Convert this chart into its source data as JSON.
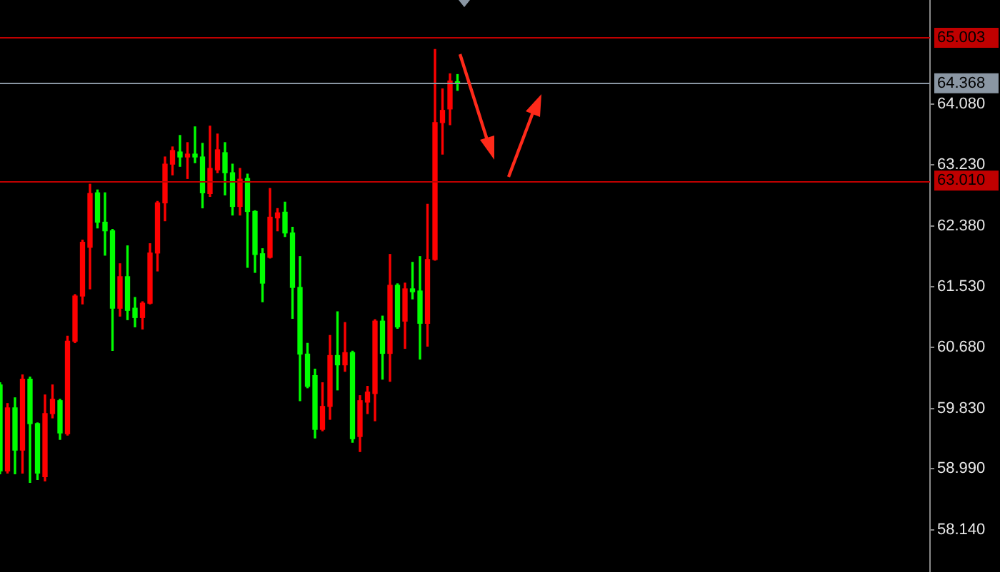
{
  "chart_data": {
    "type": "candlestick",
    "categories": [
      null,
      null,
      null,
      null,
      null,
      null,
      null,
      null,
      null,
      null,
      null,
      null,
      null,
      null,
      null,
      null,
      null,
      null,
      null,
      null,
      null,
      null,
      null,
      null,
      null,
      null,
      null,
      null,
      null,
      null,
      null,
      null,
      null,
      null,
      null,
      null,
      null,
      null,
      null,
      null,
      null,
      null,
      null,
      null,
      null,
      null,
      null,
      null,
      null,
      null,
      null,
      null,
      null,
      null,
      null,
      null,
      null,
      null,
      null,
      null,
      null,
      null,
      null,
      null,
      null,
      null,
      null,
      null,
      null,
      null,
      null,
      null,
      null,
      null,
      null,
      null,
      null,
      null,
      null,
      null,
      null,
      null,
      null,
      null,
      null,
      null,
      null,
      null,
      null,
      null,
      null,
      null,
      null,
      null,
      null,
      null,
      null,
      null,
      null,
      null,
      null,
      null,
      null,
      null,
      null,
      null,
      null,
      null,
      null,
      null,
      null,
      null,
      null,
      null,
      null,
      null,
      null,
      null,
      null,
      null,
      null,
      null,
      null,
      null,
      null
    ],
    "ohlc": [
      [
        60.16,
        60.19,
        58.92,
        58.96
      ],
      [
        58.96,
        59.9,
        58.93,
        59.84
      ],
      [
        59.84,
        59.98,
        58.92,
        59.25
      ],
      [
        59.25,
        60.3,
        58.93,
        60.24
      ],
      [
        60.24,
        60.27,
        58.8,
        59.62
      ],
      [
        59.62,
        59.63,
        58.84,
        58.93
      ],
      [
        58.88,
        60.02,
        58.82,
        59.76
      ],
      [
        59.76,
        60.16,
        59.7,
        59.96
      ],
      [
        59.94,
        59.96,
        59.4,
        59.49
      ],
      [
        59.48,
        60.84,
        59.46,
        60.77
      ],
      [
        60.77,
        61.42,
        60.75,
        61.4
      ],
      [
        61.4,
        62.18,
        61.29,
        62.15
      ],
      [
        62.08,
        62.96,
        61.5,
        62.83
      ],
      [
        62.84,
        62.88,
        62.35,
        62.43
      ],
      [
        62.43,
        62.84,
        61.97,
        62.31
      ],
      [
        62.31,
        62.33,
        60.64,
        61.23
      ],
      [
        61.23,
        61.85,
        61.12,
        61.67
      ],
      [
        61.67,
        62.1,
        61.07,
        61.2
      ],
      [
        61.23,
        61.38,
        60.97,
        61.1
      ],
      [
        61.1,
        61.32,
        60.94,
        61.3
      ],
      [
        61.3,
        62.13,
        61.29,
        62.0
      ],
      [
        62.0,
        62.72,
        61.75,
        62.7
      ],
      [
        62.7,
        63.34,
        62.45,
        63.24
      ],
      [
        63.24,
        63.48,
        63.09,
        63.43
      ],
      [
        63.41,
        63.64,
        63.21,
        63.34
      ],
      [
        63.34,
        63.54,
        63.04,
        63.38
      ],
      [
        63.38,
        63.76,
        63.26,
        63.34
      ],
      [
        63.34,
        63.53,
        62.63,
        62.84
      ],
      [
        62.83,
        63.77,
        62.79,
        63.18
      ],
      [
        63.16,
        63.66,
        63.12,
        63.44
      ],
      [
        63.4,
        63.54,
        62.81,
        63.12
      ],
      [
        63.12,
        63.24,
        62.53,
        62.65
      ],
      [
        62.65,
        63.18,
        62.53,
        63.03
      ],
      [
        63.04,
        63.1,
        61.8,
        62.58
      ],
      [
        62.58,
        62.59,
        61.73,
        61.98
      ],
      [
        61.99,
        62.06,
        61.32,
        61.58
      ],
      [
        61.94,
        62.9,
        61.93,
        62.5
      ],
      [
        62.49,
        62.62,
        62.31,
        62.56
      ],
      [
        62.57,
        62.71,
        62.23,
        62.28
      ],
      [
        62.28,
        62.36,
        61.09,
        61.52
      ],
      [
        61.52,
        61.95,
        59.94,
        60.59
      ],
      [
        60.59,
        60.74,
        60.12,
        60.14
      ],
      [
        60.29,
        60.38,
        59.42,
        59.54
      ],
      [
        59.54,
        60.19,
        59.52,
        59.86
      ],
      [
        59.86,
        60.85,
        59.68,
        60.57
      ],
      [
        60.57,
        61.18,
        60.09,
        60.44
      ],
      [
        60.44,
        61.03,
        60.35,
        60.61
      ],
      [
        60.61,
        60.63,
        59.36,
        59.41
      ],
      [
        59.44,
        60.01,
        59.23,
        59.94
      ],
      [
        59.92,
        60.14,
        59.76,
        60.06
      ],
      [
        60.04,
        61.07,
        59.66,
        61.05
      ],
      [
        61.05,
        61.12,
        60.24,
        60.6
      ],
      [
        60.6,
        61.98,
        60.21,
        61.55
      ],
      [
        61.55,
        61.57,
        60.95,
        60.97
      ],
      [
        61.05,
        61.58,
        60.67,
        61.5
      ],
      [
        61.5,
        61.87,
        61.36,
        61.46
      ],
      [
        61.47,
        61.95,
        60.52,
        61.02
      ],
      [
        61.02,
        62.68,
        60.7,
        61.91
      ],
      [
        61.91,
        64.84,
        61.9,
        63.82
      ],
      [
        63.82,
        64.29,
        63.38,
        63.99
      ],
      [
        64.01,
        64.5,
        63.79,
        64.4
      ],
      [
        64.38,
        64.49,
        64.27,
        64.37
      ],
      null,
      null,
      null,
      null,
      null,
      null,
      null,
      null,
      null,
      null,
      null,
      null,
      null,
      null,
      null,
      null,
      null,
      null,
      null,
      null,
      null,
      null,
      null,
      null,
      null,
      null,
      null,
      null,
      null,
      null,
      null,
      null,
      null,
      null,
      null,
      null,
      null,
      null,
      null,
      null,
      null,
      null,
      null,
      null,
      null,
      null,
      null,
      null,
      null,
      null,
      null,
      null,
      null,
      null,
      null,
      null,
      null,
      null,
      null,
      null,
      null,
      null,
      null
    ],
    "colors": [
      "#00ff00",
      "#ff0000",
      "#00ff00",
      "#ff0000",
      "#00ff00",
      "#00ff00",
      "#ff0000",
      "#ff0000",
      "#00ff00",
      "#ff0000",
      "#ff0000",
      "#ff0000",
      "#ff0000",
      "#00ff00",
      "#00ff00",
      "#00ff00",
      "#ff0000",
      "#00ff00",
      "#00ff00",
      "#ff0000",
      "#ff0000",
      "#ff0000",
      "#ff0000",
      "#ff0000",
      "#00ff00",
      "#ff0000",
      "#00ff00",
      "#00ff00",
      "#ff0000",
      "#ff0000",
      "#00ff00",
      "#00ff00",
      "#ff0000",
      "#00ff00",
      "#00ff00",
      "#00ff00",
      "#ff0000",
      "#ff0000",
      "#00ff00",
      "#00ff00",
      "#00ff00",
      "#00ff00",
      "#00ff00",
      "#ff0000",
      "#ff0000",
      "#00ff00",
      "#ff0000",
      "#00ff00",
      "#ff0000",
      "#ff0000",
      "#ff0000",
      "#00ff00",
      "#ff0000",
      "#00ff00",
      "#ff0000",
      "#00ff00",
      "#00ff00",
      "#ff0000",
      "#ff0000",
      "#ff0000",
      "#ff0000",
      "#00ff00",
      null,
      null,
      null,
      null,
      null,
      null,
      null,
      null,
      null,
      null,
      null,
      null,
      null,
      null,
      null,
      null,
      null,
      null,
      null,
      null,
      null,
      null,
      null,
      null,
      null,
      null,
      null,
      null,
      null,
      null,
      null,
      null,
      null,
      null,
      null,
      null,
      null,
      null,
      null,
      null,
      null,
      null,
      null,
      null,
      null,
      null,
      null,
      null,
      null,
      null,
      null,
      null,
      null,
      null,
      null,
      null,
      null,
      null,
      null,
      null,
      null,
      null,
      null
    ],
    "ylim": [
      57.55,
      65.53
    ],
    "yticks": [
      {
        "value": 58.14,
        "label": "58.140"
      },
      {
        "value": 58.99,
        "label": "58.990"
      },
      {
        "value": 59.83,
        "label": "59.830"
      },
      {
        "value": 60.68,
        "label": "60.680"
      },
      {
        "value": 61.53,
        "label": "61.530"
      },
      {
        "value": 62.38,
        "label": "62.380"
      },
      {
        "value": 63.23,
        "label": "63.230"
      },
      {
        "value": 64.08,
        "label": "64.080"
      }
    ],
    "ref_lines": [
      {
        "axis": "y",
        "value": 65.003,
        "label": "65.003",
        "color": "#c00000"
      },
      {
        "axis": "y",
        "value": 64.368,
        "label": "64.368",
        "color": "#8a96a3"
      },
      {
        "axis": "y",
        "value": 63.01,
        "label": "63.010",
        "color": "#c00000"
      }
    ],
    "tick_labels": "y",
    "grid": false,
    "legend": false
  }
}
